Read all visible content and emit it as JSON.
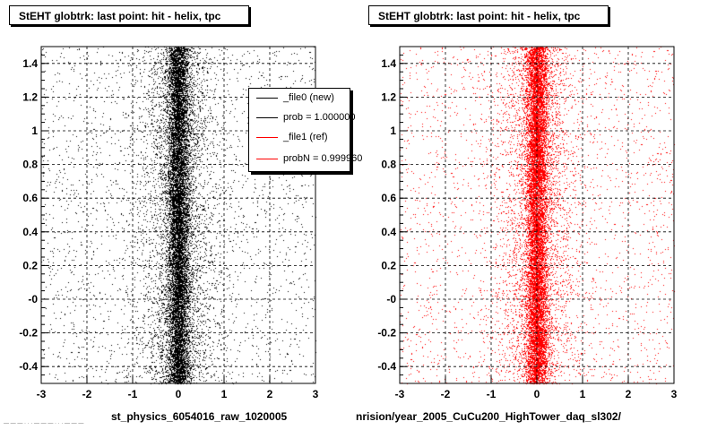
{
  "chart_data": [
    {
      "type": "scatter",
      "title": "StEHT globtrk: last point: hit - helix, tpc",
      "xlim": [
        -3,
        3
      ],
      "ylim": [
        -0.5,
        1.5
      ],
      "x_ticks": [
        "-3",
        "-2",
        "-1",
        "0",
        "1",
        "2",
        "3"
      ],
      "y_ticks": [
        "-0.4",
        "-0.2",
        "-0",
        "0.2",
        "0.4",
        "0.6",
        "0.8",
        "1",
        "1.2",
        "1.4"
      ],
      "grid": true,
      "marker_color": "#000000",
      "distribution": {
        "center_x": 0.0,
        "core_sigma_x": 0.12,
        "y_range": [
          -0.5,
          1.5
        ]
      },
      "legend": {
        "placement": "top-right",
        "entries": [
          {
            "label": "_file0 (new)",
            "color": "#000000"
          },
          {
            "label": "prob = 1.000000",
            "color": "#000000"
          },
          {
            "label": "_file1 (ref)",
            "color": "#ff0000"
          },
          {
            "label": "probN = 0.999960",
            "color": "#ff0000"
          }
        ]
      },
      "footer": "st_physics_6054016_raw_1020005"
    },
    {
      "type": "scatter",
      "title": "StEHT globtrk: last point: hit - helix, tpc",
      "xlim": [
        -3,
        3
      ],
      "ylim": [
        -0.5,
        1.5
      ],
      "x_ticks": [
        "-3",
        "-2",
        "-1",
        "0",
        "1",
        "2",
        "3"
      ],
      "y_ticks": [
        "-0.4",
        "-0.2",
        "-0",
        "0.2",
        "0.4",
        "0.6",
        "0.8",
        "1",
        "1.2",
        "1.4"
      ],
      "grid": true,
      "marker_color": "#ff0000",
      "distribution": {
        "center_x": 0.0,
        "core_sigma_x": 0.12,
        "y_range": [
          -0.5,
          1.5
        ]
      },
      "footer": "nrision/year_2005_CuCu200_HighTower_daq_sl302/"
    }
  ],
  "bottom_left_note": "— — — · · · — — — · · · — — —"
}
